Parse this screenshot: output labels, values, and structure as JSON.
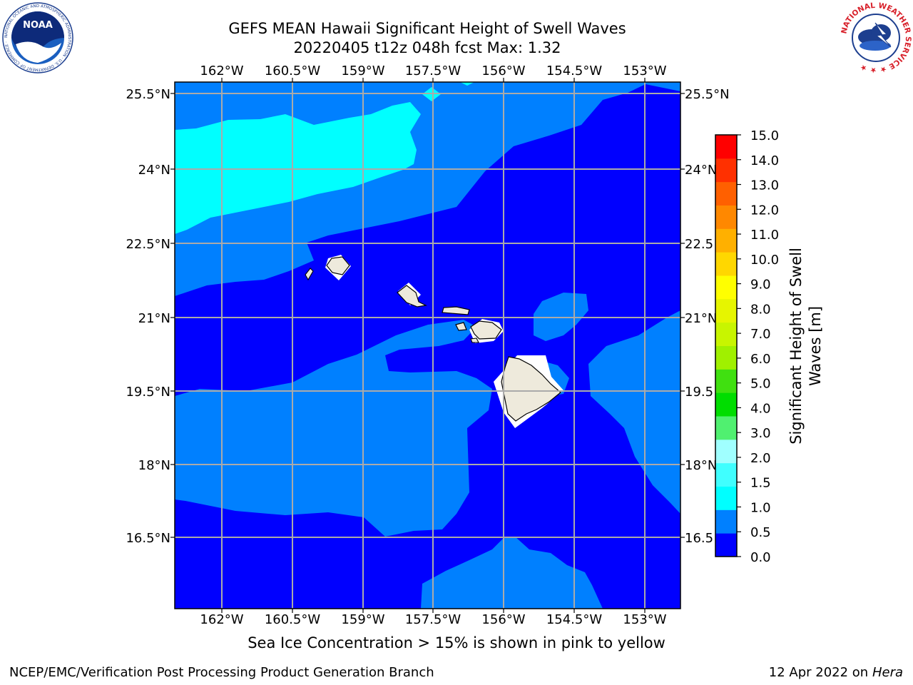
{
  "title": {
    "line1": "GEFS MEAN Hawaii Significant Height of Swell Waves",
    "line2": "20220405 t12z 048h fcst   Max: 1.32"
  },
  "map": {
    "lon_ticks": [
      "162°W",
      "160.5°W",
      "159°W",
      "157.5°W",
      "156°W",
      "154.5°W",
      "153°W"
    ],
    "lat_ticks": [
      "25.5°N",
      "24°N",
      "22.5°N",
      "21°N",
      "19.5°N",
      "18°N",
      "16.5°N"
    ],
    "lat_ticks_right": [
      "25.5°N",
      "24°N",
      "22.5",
      "21°N",
      "19.5",
      "18°N",
      "16.5"
    ],
    "colors": {
      "level_0": "#0000ff",
      "level_05": "#0080ff",
      "level_1": "#00ffff",
      "land": "#eeeadc",
      "grid": "#aaaaaa"
    }
  },
  "colorbar": {
    "label": "Significant Height of Swell Waves [m]",
    "ticks": [
      "0.0",
      "0.5",
      "1.0",
      "1.5",
      "2.0",
      "3.0",
      "4.0",
      "5.0",
      "6.0",
      "7.0",
      "8.0",
      "9.0",
      "10.0",
      "11.0",
      "12.0",
      "13.0",
      "14.0",
      "15.0"
    ],
    "colors": [
      "#0000ff",
      "#0080ff",
      "#00ffff",
      "#40ffff",
      "#a0ffff",
      "#50f070",
      "#00dd00",
      "#40e010",
      "#a0f000",
      "#c8f500",
      "#e6f500",
      "#ffff00",
      "#ffd700",
      "#ffb000",
      "#ff8800",
      "#ff6000",
      "#ff3000",
      "#ff0000"
    ]
  },
  "footer": {
    "note": "Sea Ice Concentration > 15% is shown in pink to yellow",
    "credit": "NCEP/EMC/Verification Post Processing Product Generation Branch",
    "date": "12 Apr 2022 on ",
    "machine": "Hera"
  },
  "logos": {
    "noaa_text": "NOAA",
    "noaa_ring": "NATIONAL OCEANIC AND ATMOSPHERIC ADMINISTRATION · U.S. DEPARTMENT OF COMMERCE ·",
    "nws_ring": "NATIONAL WEATHER SERVICE ★ ★ ★"
  }
}
